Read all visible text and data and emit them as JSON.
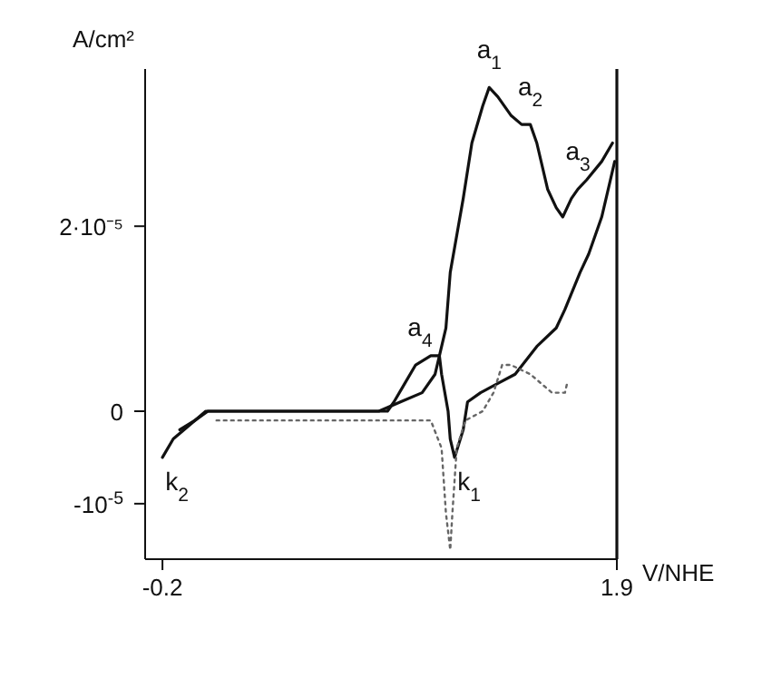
{
  "chart_data": {
    "type": "line",
    "xlabel": "V/NHE",
    "ylabel": "A/cm²",
    "xlim": [
      -0.28,
      1.9
    ],
    "ylim": [
      -1.6e-05,
      3.7e-05
    ],
    "xticks": [
      -0.2,
      1.9
    ],
    "yticks": [
      {
        "value": 2e-05,
        "label": "2·10⁻⁵"
      },
      {
        "value": 0,
        "label": "0"
      },
      {
        "value": -1e-05,
        "label": "-10$^{-5}$"
      }
    ],
    "grid": false,
    "legend": false,
    "marker": "none",
    "series": [
      {
        "color": "#111111",
        "line_style": "solid",
        "x": [
          -0.12,
          -0.05,
          0,
          0.8,
          0.9,
          1.0,
          1.06,
          1.08,
          1.11,
          1.13,
          1.19,
          1.23,
          1.28,
          1.31,
          1.35,
          1.41,
          1.46,
          1.5,
          1.53,
          1.58,
          1.62,
          1.65,
          1.69,
          1.72,
          1.76,
          1.83,
          1.88
        ],
        "values": [
          -2e-06,
          -1e-06,
          0,
          0,
          1e-06,
          2e-06,
          4e-06,
          6e-06,
          9e-06,
          1.5e-05,
          2.3e-05,
          2.9e-05,
          3.3e-05,
          3.5e-05,
          3.4e-05,
          3.2e-05,
          3.1e-05,
          3.1e-05,
          2.9e-05,
          2.4e-05,
          2.2e-05,
          2.1e-05,
          2.3e-05,
          2.4e-05,
          2.5e-05,
          2.7e-05,
          2.9e-05
        ]
      },
      {
        "color": "#111111",
        "line_style": "solid",
        "x": [
          1.89,
          1.87,
          1.83,
          1.77,
          1.73,
          1.66,
          1.62,
          1.53,
          1.43,
          1.35,
          1.27,
          1.21,
          1.19,
          1.15,
          1.13,
          1.12,
          1.09,
          1.08,
          1.04,
          0.97,
          0.92,
          0.87,
          0.84,
          0.01,
          -0.05,
          -0.15,
          -0.2
        ],
        "values": [
          2.7e-05,
          2.5e-05,
          2.1e-05,
          1.7e-05,
          1.5e-05,
          1.1e-05,
          9e-06,
          7e-06,
          4e-06,
          3e-06,
          2e-06,
          1e-06,
          -2e-06,
          -5e-06,
          -3e-06,
          0,
          4e-06,
          6e-06,
          6e-06,
          5e-06,
          3e-06,
          1e-06,
          0,
          0,
          -1e-06,
          -3e-06,
          -5e-06
        ]
      },
      {
        "color": "#666666",
        "line_style": "dotted",
        "x": [
          0.05,
          0.8,
          1.04,
          1.09,
          1.11,
          1.13,
          1.14,
          1.16,
          1.2,
          1.28,
          1.33,
          1.37,
          1.41,
          1.5,
          1.6,
          1.66,
          1.67
        ],
        "values": [
          -1e-06,
          -1e-06,
          -1e-06,
          -4e-06,
          -1.1e-05,
          -1.5e-05,
          -1.1e-05,
          -4e-06,
          -1e-06,
          0,
          2e-06,
          5e-06,
          5e-06,
          4e-06,
          2e-06,
          2e-06,
          3e-06
        ]
      }
    ],
    "annotations": [
      {
        "text": "a$_{1}$",
        "x": 1.31,
        "y": 3.5e-05
      },
      {
        "text": "a$_{2}$",
        "x": 1.5,
        "y": 3.1e-05
      },
      {
        "text": "a$_{3}$",
        "x": 1.72,
        "y": 2.4e-05
      },
      {
        "text": "a$_{4}$",
        "x": 0.99,
        "y": 5e-06
      },
      {
        "text": "k$_{1}$",
        "x": 1.15,
        "y": -5e-06
      },
      {
        "text": "k$_{2}$",
        "x": -0.2,
        "y": -5e-06
      }
    ]
  }
}
